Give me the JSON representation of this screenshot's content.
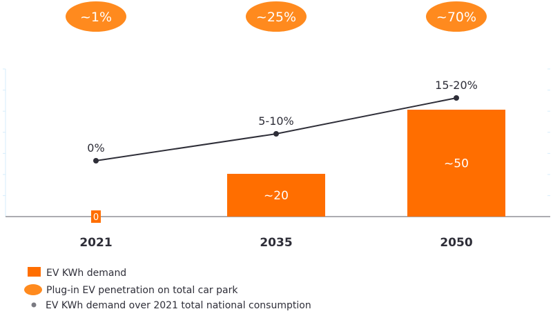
{
  "chart_data": {
    "type": "bar",
    "categories": [
      "2021",
      "2035",
      "2050"
    ],
    "series": [
      {
        "name": "EV KWh demand",
        "values": [
          0,
          20,
          50
        ],
        "labels": [
          "0",
          "~20",
          "~50"
        ],
        "color": "#FF6E00"
      },
      {
        "name": "Plug-in EV penetration on total car park",
        "labels": [
          "~1%",
          "~25%",
          "~70%"
        ],
        "color": "#FF8A1E"
      },
      {
        "name": "EV KWh demand over 2021 total national consumption",
        "type": "line",
        "values": [
          0,
          7.5,
          17.5
        ],
        "labels": [
          "0%",
          "5-10%",
          "15-20%"
        ],
        "color": "#2E2E38"
      }
    ],
    "ylim": [
      0,
      70
    ],
    "grid": false,
    "legend_position": "bottom-left"
  }
}
